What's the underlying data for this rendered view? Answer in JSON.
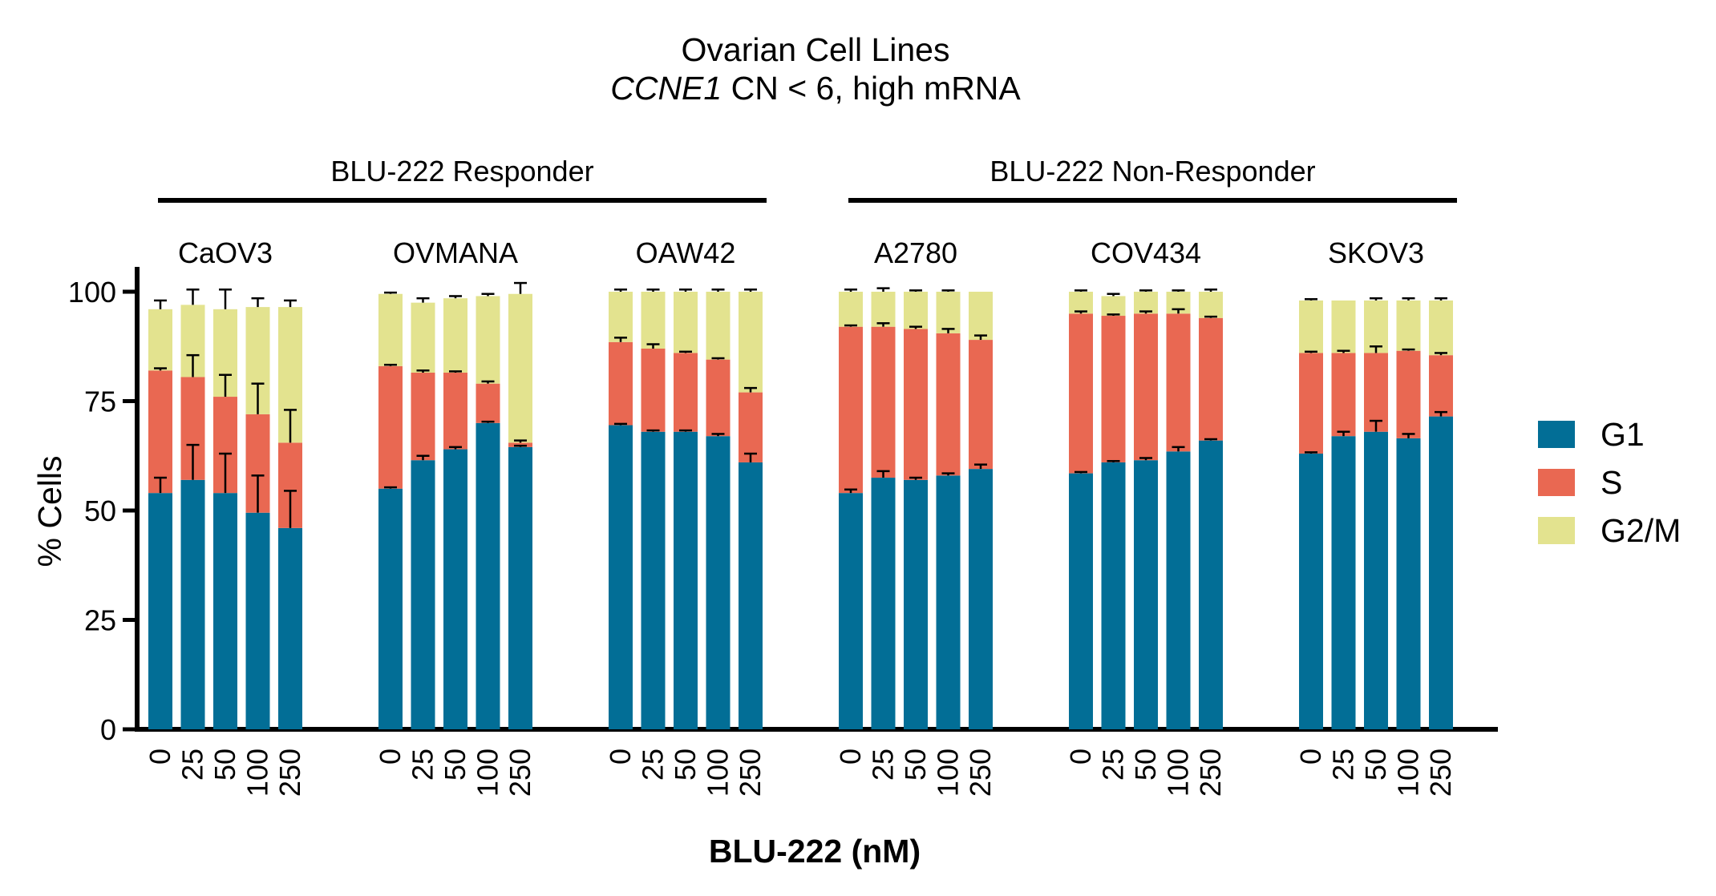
{
  "chart_data": {
    "type": "bar",
    "stacked": true,
    "title": "Ovarian Cell Lines",
    "subtitle_italic": "CCNE1",
    "subtitle_rest": " CN < 6, high mRNA",
    "xlabel": "BLU-222 (nM)",
    "ylabel": "% Cells",
    "ylim": [
      0,
      100
    ],
    "yticks": [
      "0",
      "25",
      "50",
      "75",
      "100"
    ],
    "grid": false,
    "legend_position": "right",
    "doses": [
      "0",
      "25",
      "50",
      "100",
      "250"
    ],
    "response_groups": [
      {
        "label": "BLU-222 Responder",
        "cell_lines": [
          "CaOV3",
          "OVMANA",
          "OAW42"
        ]
      },
      {
        "label": "BLU-222 Non-Responder",
        "cell_lines": [
          "A2780",
          "COV434",
          "SKOV3"
        ]
      }
    ],
    "series": [
      {
        "name": "G1",
        "color": "#026e96"
      },
      {
        "name": "S",
        "color": "#e96852"
      },
      {
        "name": "G2/M",
        "color": "#e3e38f"
      }
    ],
    "groups": [
      {
        "name": "CaOV3",
        "G1": [
          54,
          57,
          54,
          49.5,
          46
        ],
        "S": [
          28,
          23.5,
          22,
          22.5,
          19.5
        ],
        "G2M": [
          14,
          16.5,
          20,
          24.5,
          31
        ],
        "err": {
          "G1": [
            3.5,
            8,
            9,
            8.5,
            8.5
          ],
          "S": [
            0.5,
            5,
            5,
            7,
            7.5
          ],
          "G2M": [
            2,
            3.5,
            4.5,
            2,
            1.5
          ]
        }
      },
      {
        "name": "OVMANA",
        "G1": [
          55,
          61.5,
          64,
          70,
          64.5
        ],
        "S": [
          28,
          20,
          17.5,
          9,
          1
        ],
        "G2M": [
          16.5,
          16,
          17,
          20,
          34
        ],
        "err": {
          "G1": [
            0.3,
            1,
            0.5,
            0.3,
            0.3
          ],
          "S": [
            0.3,
            0.5,
            0.3,
            0.5,
            0.5
          ],
          "G2M": [
            0.3,
            1,
            0.5,
            0.5,
            2.5
          ]
        }
      },
      {
        "name": "OAW42",
        "G1": [
          69.5,
          68,
          68,
          67,
          61
        ],
        "S": [
          19,
          19,
          18,
          17.5,
          16
        ],
        "G2M": [
          11.5,
          13,
          14,
          15.5,
          23
        ],
        "err": {
          "G1": [
            0.3,
            0.3,
            0.3,
            0.5,
            2
          ],
          "S": [
            1,
            1,
            0.3,
            0.3,
            1
          ],
          "G2M": [
            0.5,
            0.5,
            0.5,
            0.5,
            0.5
          ]
        }
      },
      {
        "name": "A2780",
        "G1": [
          54,
          57.5,
          57,
          58,
          59.5
        ],
        "S": [
          38,
          34.5,
          34.5,
          32.5,
          29.5
        ],
        "G2M": [
          8,
          8,
          8.5,
          9.5,
          11
        ],
        "err": {
          "G1": [
            0.8,
            1.5,
            0.5,
            0.5,
            1
          ],
          "S": [
            0.3,
            0.8,
            0.5,
            1,
            1
          ],
          "G2M": [
            0.5,
            0.8,
            0.3,
            0.3,
            0
          ]
        }
      },
      {
        "name": "COV434",
        "G1": [
          58.5,
          61,
          61.5,
          63.5,
          66
        ],
        "S": [
          36.5,
          33.5,
          33.5,
          31.5,
          28
        ],
        "G2M": [
          5,
          4.5,
          5,
          5,
          6
        ],
        "err": {
          "G1": [
            0.3,
            0.3,
            0.5,
            1,
            0.3
          ],
          "S": [
            0.5,
            0.3,
            0.5,
            1,
            0.3
          ],
          "G2M": [
            0.3,
            0.5,
            0.3,
            0.3,
            0.5
          ]
        }
      },
      {
        "name": "SKOV3",
        "G1": [
          63,
          67,
          68,
          66.5,
          71.5
        ],
        "S": [
          23,
          19,
          18,
          20,
          14
        ],
        "G2M": [
          12,
          12,
          12,
          11.5,
          12.5
        ],
        "err": {
          "G1": [
            0.3,
            1,
            2.5,
            1,
            1
          ],
          "S": [
            0.3,
            0.5,
            1.5,
            0.3,
            0.5
          ],
          "G2M": [
            0.3,
            0,
            0.5,
            0.5,
            0.5
          ]
        }
      }
    ]
  }
}
